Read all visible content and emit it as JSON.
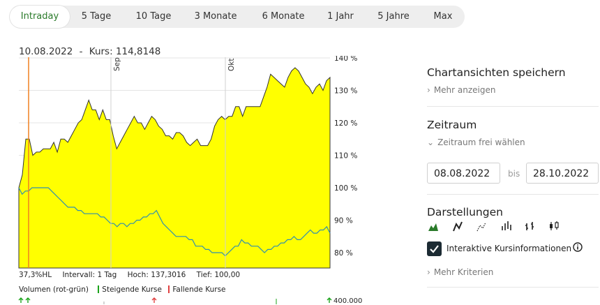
{
  "tabs": [
    "Intraday",
    "5 Tage",
    "10 Tage",
    "3 Monate",
    "6 Monate",
    "1 Jahr",
    "5 Jahre",
    "Max"
  ],
  "active_tab": "Intraday",
  "chart_header": {
    "date": "10.08.2022",
    "separator": "-",
    "kurs_label": "Kurs:",
    "kurs_value": "114,8148"
  },
  "stats": {
    "hl": "37,3%HL",
    "intervall": "Intervall: 1 Tag",
    "hoch": "Hoch: 137,3016",
    "tief": "Tief:  100,00"
  },
  "volume": {
    "label": "Volumen (rot-grün)",
    "steigend": "Steigende Kurse",
    "fallend": "Fallende Kurse",
    "axis_label": "400.000"
  },
  "sidebar": {
    "save_title": "Chartansichten speichern",
    "save_more": "Mehr anzeigen",
    "zeitraum_title": "Zeitraum",
    "zeitraum_link": "Zeitraum frei wählen",
    "date_from": "08.08.2022",
    "bis": "bis",
    "date_to": "28.10.2022",
    "darstellungen_title": "Darstellungen",
    "chart_types": [
      "mountain-chart-icon",
      "line-chart-icon",
      "dot-line-chart-icon",
      "ohlc-bar-chart-icon",
      "hlc-bar-chart-icon",
      "candlestick-chart-icon"
    ],
    "interactive_label": "Interaktive Kursinformationen",
    "more_criteria": "Mehr Kriterien"
  },
  "colors": {
    "area_fill": "#ffff00",
    "line": "#2f8fb0",
    "cursor": "#f08020",
    "accent_green": "#2a7a2a",
    "rising": "#1aa31a",
    "falling": "#e04040"
  },
  "chart_data": {
    "type": "area",
    "yaxis": {
      "ticks": [
        80,
        90,
        100,
        110,
        120,
        130,
        140
      ],
      "tick_labels": [
        "80 %",
        "90 %",
        "100 %",
        "110 %",
        "120 %",
        "130 %",
        "140 %"
      ]
    },
    "x_month_markers": [
      "Sep",
      "Okt"
    ],
    "series": [
      {
        "values": [
          100,
          104,
          115,
          115,
          110,
          111,
          111,
          112,
          112,
          112,
          114,
          111,
          115,
          115,
          114,
          116,
          118,
          120,
          121,
          124,
          127,
          124,
          124,
          121,
          124,
          121,
          121,
          116,
          112,
          114,
          116,
          118,
          120,
          122,
          120,
          120,
          118,
          120,
          122,
          121,
          119,
          118,
          116,
          116,
          115,
          117,
          117,
          116,
          114,
          113,
          114,
          115,
          113,
          113,
          113,
          115,
          119,
          121,
          122,
          121,
          122,
          122,
          125,
          125,
          122,
          125,
          125,
          125,
          125,
          125,
          128,
          131,
          135,
          134,
          133,
          132,
          131,
          134,
          136,
          137,
          136,
          134,
          132,
          131,
          129,
          131,
          132,
          130,
          133,
          134
        ]
      },
      {
        "values": [
          100,
          98,
          99,
          99,
          100,
          100,
          100,
          100,
          100,
          100,
          99,
          98,
          97,
          96,
          95,
          94,
          94,
          94,
          93,
          93,
          92,
          92,
          92,
          92,
          92,
          91,
          91,
          90,
          89,
          89,
          88,
          89,
          89,
          88,
          89,
          89,
          90,
          90,
          91,
          91,
          92,
          92,
          93,
          91,
          89,
          88,
          87,
          86,
          85,
          85,
          85,
          85,
          84,
          84,
          82,
          82,
          82,
          81,
          81,
          80,
          80,
          80,
          80,
          79,
          80,
          81,
          82,
          82,
          84,
          83,
          83,
          82,
          82,
          82,
          81,
          80,
          81,
          81,
          82,
          82,
          83,
          83,
          84,
          84,
          85,
          84,
          84,
          85,
          86,
          87,
          86,
          86,
          87,
          87,
          88,
          86
        ]
      }
    ]
  }
}
